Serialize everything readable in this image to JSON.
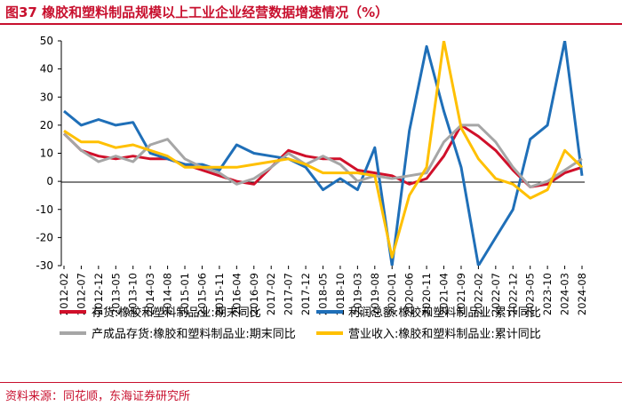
{
  "header": {
    "title": "图37  橡胶和塑料制品规模以上工业企业经营数据增速情况（%）"
  },
  "footer": {
    "source": "资料来源：同花顺，东海证券研究所"
  },
  "colors": {
    "title": "#c8102e",
    "inventory": "#d0102a",
    "profit": "#1f6fb8",
    "finished_goods": "#a6a6a6",
    "revenue": "#ffc000"
  },
  "chart_data": {
    "type": "line",
    "ylim": [
      -30,
      50
    ],
    "yticks": [
      -30,
      -20,
      -10,
      0,
      10,
      20,
      30,
      40,
      50
    ],
    "xlabel": "",
    "ylabel": "",
    "grid": false,
    "legend_position": "bottom",
    "x_ticks": [
      "2012-02",
      "2012-07",
      "2012-12",
      "2013-05",
      "2013-10",
      "2014-03",
      "2014-08",
      "2015-01",
      "2015-06",
      "2015-11",
      "2016-04",
      "2016-09",
      "2017-02",
      "2017-07",
      "2017-12",
      "2018-05",
      "2018-10",
      "2019-03",
      "2019-08",
      "2020-01",
      "2020-06",
      "2020-11",
      "2021-04",
      "2021-09",
      "2022-02",
      "2022-07",
      "2022-12",
      "2023-05",
      "2023-10",
      "2024-03",
      "2024-08"
    ],
    "series": [
      {
        "name": "存货:橡胶和塑料制品业:期末同比",
        "color": "#d0102a",
        "points": [
          [
            "2012-02",
            17
          ],
          [
            "2012-07",
            11
          ],
          [
            "2012-12",
            9
          ],
          [
            "2013-05",
            8
          ],
          [
            "2013-10",
            9
          ],
          [
            "2014-03",
            8
          ],
          [
            "2014-08",
            8
          ],
          [
            "2015-01",
            6
          ],
          [
            "2015-06",
            4
          ],
          [
            "2015-11",
            2
          ],
          [
            "2016-04",
            0
          ],
          [
            "2016-09",
            -1
          ],
          [
            "2017-02",
            5
          ],
          [
            "2017-07",
            11
          ],
          [
            "2017-12",
            9
          ],
          [
            "2018-05",
            8
          ],
          [
            "2018-10",
            8
          ],
          [
            "2019-03",
            4
          ],
          [
            "2019-08",
            3
          ],
          [
            "2020-01",
            2
          ],
          [
            "2020-06",
            -1
          ],
          [
            "2020-11",
            1
          ],
          [
            "2021-04",
            9
          ],
          [
            "2021-09",
            20
          ],
          [
            "2022-02",
            16
          ],
          [
            "2022-07",
            11
          ],
          [
            "2022-12",
            4
          ],
          [
            "2023-05",
            -2
          ],
          [
            "2023-10",
            -1
          ],
          [
            "2024-03",
            3
          ],
          [
            "2024-08",
            5
          ]
        ]
      },
      {
        "name": "利润总额:橡胶和塑料制品业:累计同比",
        "color": "#1f6fb8",
        "points": [
          [
            "2012-02",
            25
          ],
          [
            "2012-07",
            20
          ],
          [
            "2012-12",
            22
          ],
          [
            "2013-05",
            20
          ],
          [
            "2013-10",
            21
          ],
          [
            "2014-03",
            10
          ],
          [
            "2014-08",
            8
          ],
          [
            "2015-01",
            6
          ],
          [
            "2015-06",
            6
          ],
          [
            "2015-11",
            4
          ],
          [
            "2016-04",
            13
          ],
          [
            "2016-09",
            10
          ],
          [
            "2017-02",
            9
          ],
          [
            "2017-07",
            8
          ],
          [
            "2017-12",
            5
          ],
          [
            "2018-05",
            -3
          ],
          [
            "2018-10",
            1
          ],
          [
            "2019-03",
            -3
          ],
          [
            "2019-08",
            12
          ],
          [
            "2020-01",
            -30
          ],
          [
            "2020-06",
            18
          ],
          [
            "2020-11",
            48
          ],
          [
            "2021-04",
            25
          ],
          [
            "2021-09",
            5
          ],
          [
            "2022-02",
            -30
          ],
          [
            "2022-07",
            -20
          ],
          [
            "2022-12",
            -10
          ],
          [
            "2023-05",
            15
          ],
          [
            "2023-10",
            20
          ],
          [
            "2024-03",
            50
          ],
          [
            "2024-08",
            2
          ]
        ]
      },
      {
        "name": "产成品存货:橡胶和塑料制品业:期末同比",
        "color": "#a6a6a6",
        "points": [
          [
            "2012-02",
            17
          ],
          [
            "2012-07",
            11
          ],
          [
            "2012-12",
            7
          ],
          [
            "2013-05",
            9
          ],
          [
            "2013-10",
            7
          ],
          [
            "2014-03",
            13
          ],
          [
            "2014-08",
            15
          ],
          [
            "2015-01",
            8
          ],
          [
            "2015-06",
            5
          ],
          [
            "2015-11",
            3
          ],
          [
            "2016-04",
            -1
          ],
          [
            "2016-09",
            1
          ],
          [
            "2017-02",
            5
          ],
          [
            "2017-07",
            10
          ],
          [
            "2017-12",
            6
          ],
          [
            "2018-05",
            9
          ],
          [
            "2018-10",
            6
          ],
          [
            "2019-03",
            0
          ],
          [
            "2019-08",
            2
          ],
          [
            "2020-01",
            1
          ],
          [
            "2020-06",
            2
          ],
          [
            "2020-11",
            3
          ],
          [
            "2021-04",
            14
          ],
          [
            "2021-09",
            20
          ],
          [
            "2022-02",
            20
          ],
          [
            "2022-07",
            14
          ],
          [
            "2022-12",
            5
          ],
          [
            "2023-05",
            -2
          ],
          [
            "2023-10",
            0
          ],
          [
            "2024-03",
            4
          ],
          [
            "2024-08",
            8
          ]
        ]
      },
      {
        "name": "营业收入:橡胶和塑料制品业:累计同比",
        "color": "#ffc000",
        "points": [
          [
            "2012-02",
            18
          ],
          [
            "2012-07",
            14
          ],
          [
            "2012-12",
            14
          ],
          [
            "2013-05",
            12
          ],
          [
            "2013-10",
            13
          ],
          [
            "2014-03",
            11
          ],
          [
            "2014-08",
            9
          ],
          [
            "2015-01",
            5
          ],
          [
            "2015-06",
            5
          ],
          [
            "2015-11",
            5
          ],
          [
            "2016-04",
            5
          ],
          [
            "2016-09",
            6
          ],
          [
            "2017-02",
            7
          ],
          [
            "2017-07",
            8
          ],
          [
            "2017-12",
            6
          ],
          [
            "2018-05",
            3
          ],
          [
            "2018-10",
            3
          ],
          [
            "2019-03",
            3
          ],
          [
            "2019-08",
            2
          ],
          [
            "2020-01",
            -27
          ],
          [
            "2020-06",
            -5
          ],
          [
            "2020-11",
            5
          ],
          [
            "2021-04",
            50
          ],
          [
            "2021-09",
            19
          ],
          [
            "2022-02",
            8
          ],
          [
            "2022-07",
            1
          ],
          [
            "2022-12",
            -1
          ],
          [
            "2023-05",
            -6
          ],
          [
            "2023-10",
            -3
          ],
          [
            "2024-03",
            11
          ],
          [
            "2024-08",
            5
          ]
        ]
      }
    ]
  }
}
